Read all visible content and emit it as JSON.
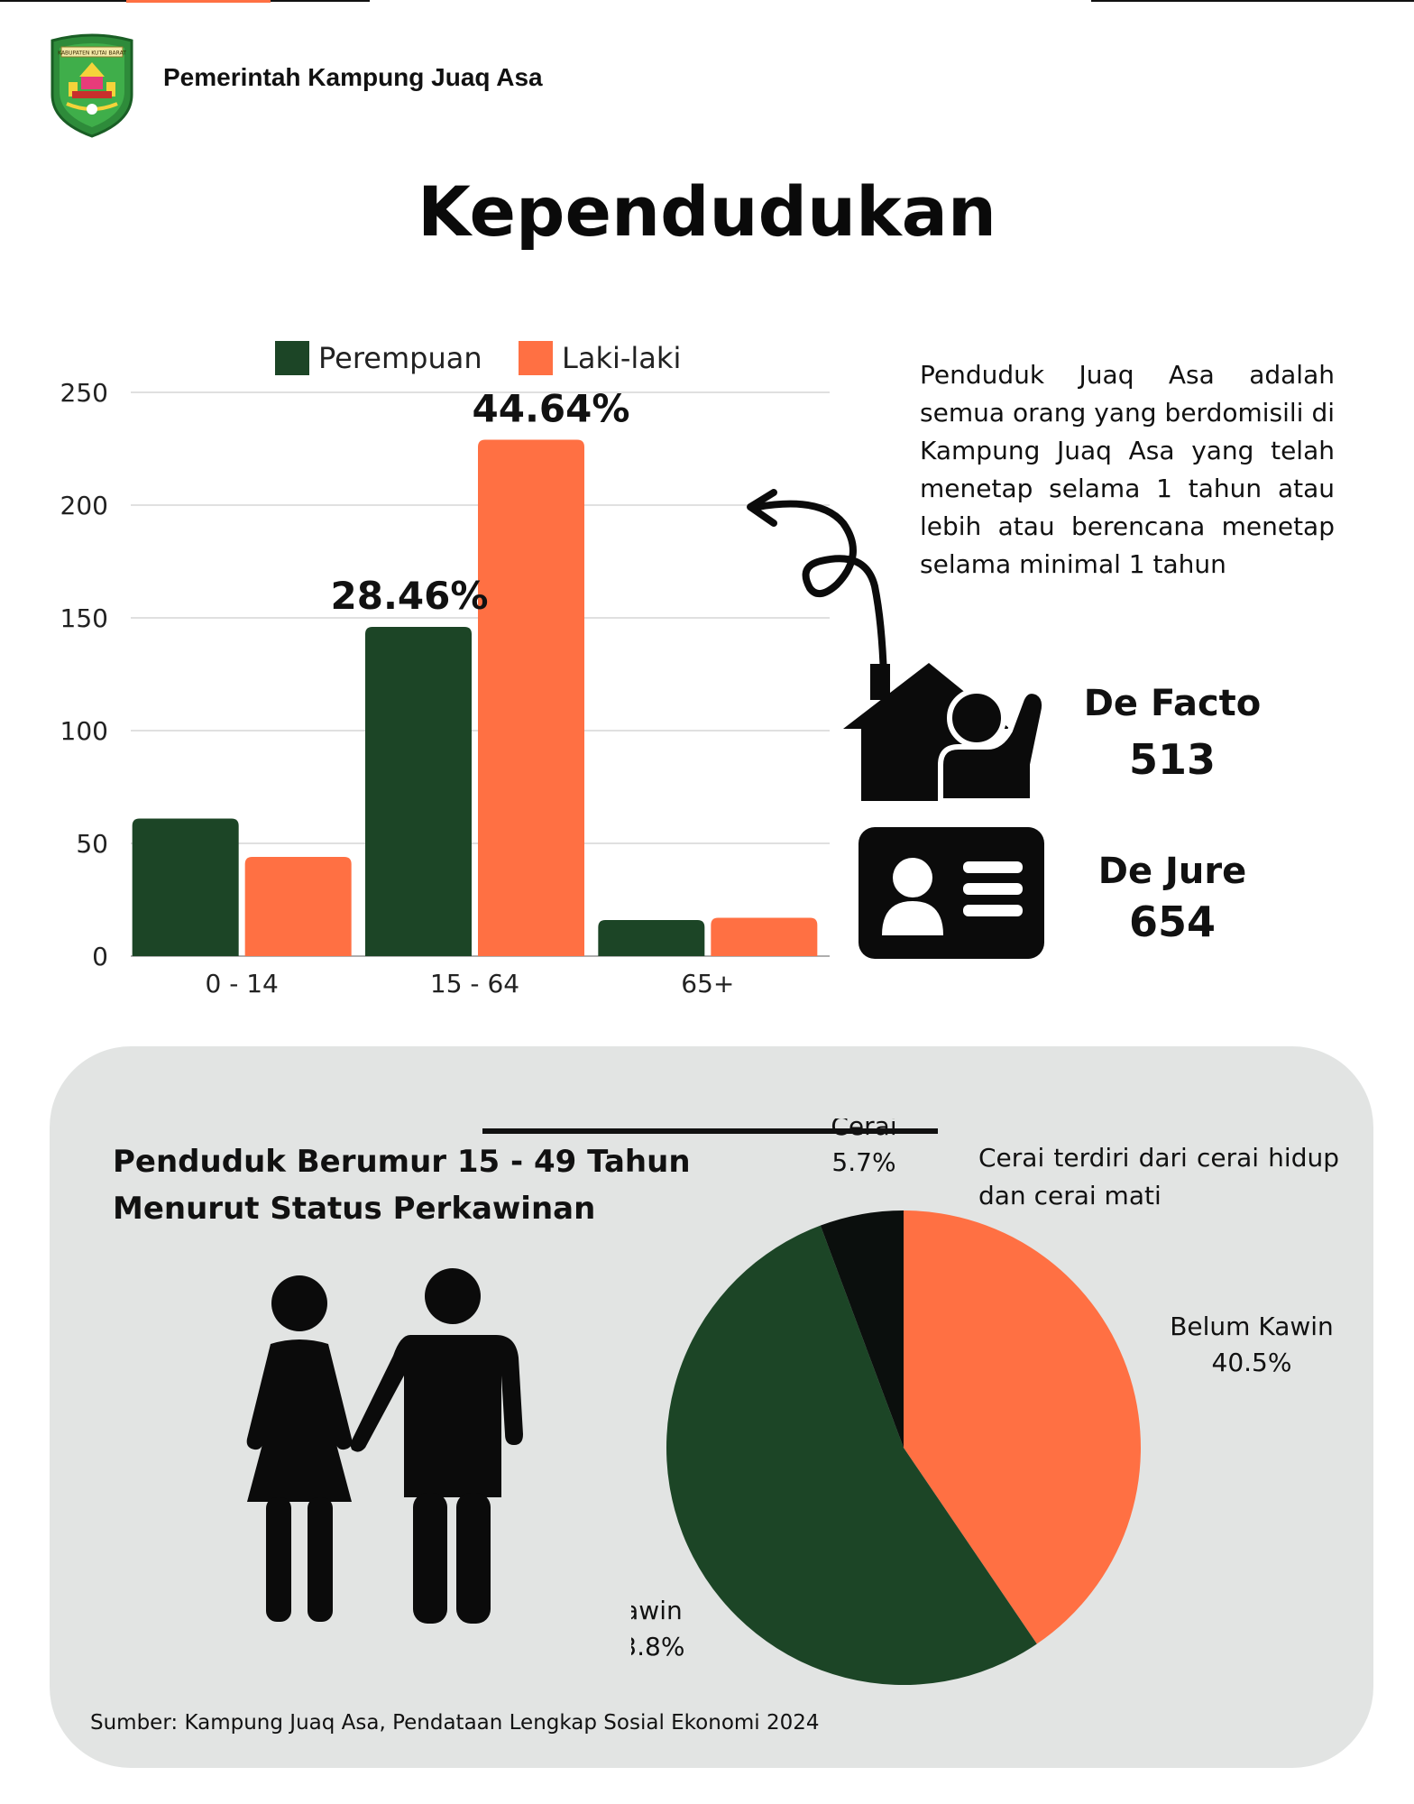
{
  "header": {
    "org_name": "Pemerintah Kampung Juaq Asa",
    "logo_icon": "kabupaten-kutai-barat-emblem",
    "logo_text": "KABUPATEN KUTAI BARAT"
  },
  "title": "Kependudukan",
  "colors": {
    "dark_green": "#1c4526",
    "orange": "#ff7043",
    "black": "#0b0f0d",
    "panel_bg": "#e2e4e3"
  },
  "chart_data": [
    {
      "type": "bar",
      "categories": [
        "0 - 14",
        "15 - 64",
        "65+"
      ],
      "series": [
        {
          "name": "Perempuan",
          "color": "#1c4526",
          "values": [
            61,
            146,
            16
          ]
        },
        {
          "name": "Laki-laki",
          "color": "#ff7043",
          "values": [
            44,
            229,
            17
          ]
        }
      ],
      "ylim": [
        0,
        250
      ],
      "yticks": [
        "0",
        "50",
        "100",
        "150",
        "200",
        "250"
      ],
      "grid": true,
      "legend_position": "top",
      "annotations": [
        {
          "text": "28.46%",
          "series": "Perempuan",
          "category": "15 - 64"
        },
        {
          "text": "44.64%",
          "series": "Laki-laki",
          "category": "15 - 64"
        }
      ]
    },
    {
      "type": "pie",
      "title": "Penduduk Berumur 15 - 49 Tahun Menurut Status Perkawinan",
      "slices": [
        {
          "label": "Belum Kawin",
          "value": 40.5,
          "display": "40.5%",
          "color": "#ff7043"
        },
        {
          "label": "Kawin",
          "value": 53.8,
          "display": "53.8%",
          "color": "#1c4526"
        },
        {
          "label": "Cerai",
          "value": 5.7,
          "display": "5.7%",
          "color": "#0b0f0d"
        }
      ]
    }
  ],
  "residents": {
    "description": "Penduduk Juaq Asa adalah semua orang yang berdomisili di Kampung Juaq Asa yang telah menetap selama 1 tahun atau lebih atau berencana menetap selama minimal 1 tahun",
    "de_facto_label": "De Facto",
    "de_facto_value": "513",
    "de_jure_label": "De Jure",
    "de_jure_value": "654",
    "house_icon": "house-person-icon",
    "id_icon": "id-card-icon"
  },
  "marital": {
    "title_line1": "Penduduk Berumur 15 - 49 Tahun",
    "title_line2": "Menurut Status Perkawinan",
    "note": "Cerai terdiri dari cerai hidup dan cerai mati",
    "couple_icon": "couple-icon"
  },
  "source": "Sumber: Kampung Juaq Asa, Pendataan Lengkap Sosial Ekonomi 2024"
}
